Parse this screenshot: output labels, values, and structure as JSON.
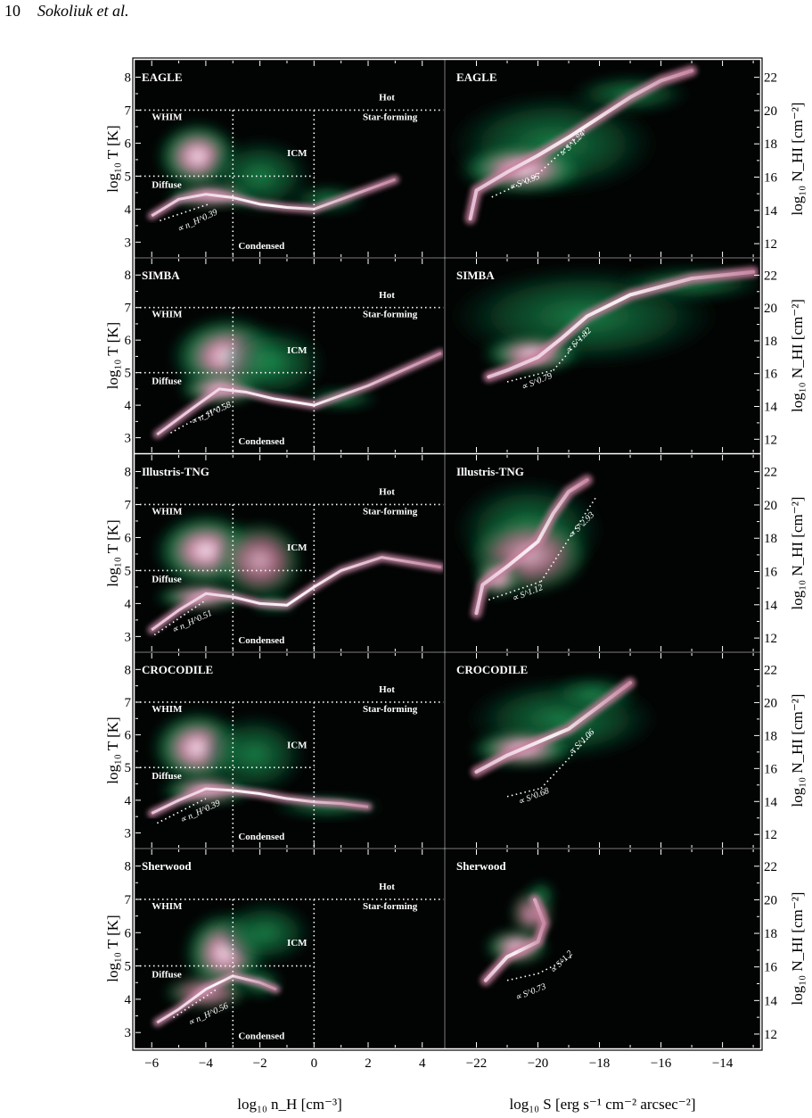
{
  "page_header": {
    "page_number": "10",
    "running_head": "Sokoliuk et al."
  },
  "figure": {
    "phase_axis": {
      "xlabel": "log₁₀ n_H [cm⁻³]",
      "ylabel": "log₁₀ T [K]",
      "xticks": [
        "−6",
        "−4",
        "−2",
        "0",
        "2",
        "4"
      ],
      "yticks": [
        "3",
        "4",
        "5",
        "6",
        "7",
        "8"
      ],
      "xlim": [
        -6.6,
        4.8
      ],
      "ylim": [
        2.55,
        8.5
      ]
    },
    "sb_axis": {
      "xlabel": "log₁₀ S [erg s⁻¹ cm⁻² arcsec⁻²]",
      "ylabel": "log₁₀ N_HI [cm⁻²]",
      "xticks": [
        "−22",
        "−20",
        "−18",
        "−16",
        "−14"
      ],
      "yticks": [
        "12",
        "14",
        "16",
        "18",
        "20",
        "22"
      ],
      "xlim": [
        -23.0,
        -12.8
      ],
      "ylim": [
        11.2,
        23.0
      ]
    },
    "region_labels": {
      "hot": "Hot",
      "star_forming": "Star-forming",
      "whim": "WHIM",
      "icm": "ICM",
      "diffuse": "Diffuse",
      "condensed": "Condensed"
    },
    "rows": [
      {
        "sim": "EAGLE",
        "fit_left": "∝ n_H^0.39",
        "fit_right_low": "∝ S^0.95",
        "fit_right_high": "∝ S^1.24"
      },
      {
        "sim": "SIMBA",
        "fit_left": "∝ n_H^0.58",
        "fit_right_low": "∝ S^0.79",
        "fit_right_high": "∝ S^1.82"
      },
      {
        "sim": "Illustris-TNG",
        "fit_left": "∝ n_H^0.51",
        "fit_right_low": "∝ S^1.12",
        "fit_right_high": "∝ S^2.93"
      },
      {
        "sim": "CROCODILE",
        "fit_left": "∝ n_H^0.39",
        "fit_right_low": "∝ S^0.68",
        "fit_right_high": "∝ S^1.06"
      },
      {
        "sim": "Sherwood",
        "fit_left": "∝ n_H^0.56",
        "fit_right_low": "∝ S^0.73",
        "fit_right_high": "∝ S^1.2"
      }
    ],
    "colors": {
      "background": "#020303",
      "density_low": "#0d6b3a",
      "density_mid": "#cc6f8e",
      "density_high": "#f6f2fa",
      "guide_lines": "#ffffff"
    }
  }
}
